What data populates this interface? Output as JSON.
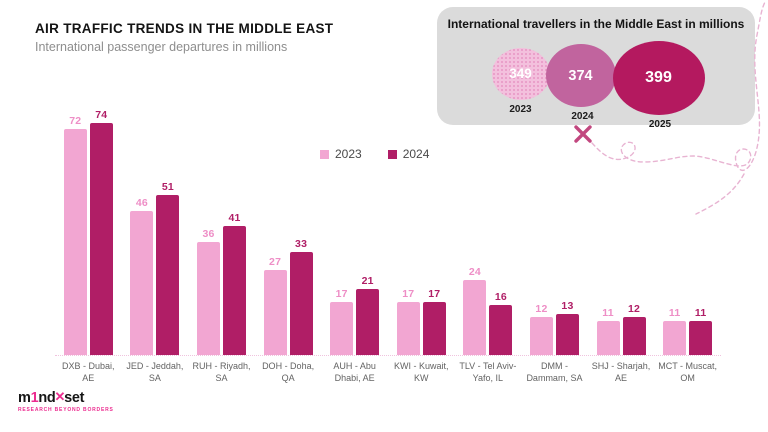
{
  "header": {
    "title": "AIR TRAFFIC TRENDS IN THE MIDDLE EAST",
    "subtitle": "International passenger departures in millions"
  },
  "chart_data": {
    "type": "bar",
    "title": "AIR TRAFFIC TRENDS IN THE MIDDLE EAST",
    "subtitle": "International passenger departures in millions",
    "categories": [
      "DXB - Dubai, AE",
      "JED - Jeddah, SA",
      "RUH - Riyadh, SA",
      "DOH - Doha, QA",
      "AUH - Abu Dhabi, AE",
      "KWI - Kuwait, KW",
      "TLV - Tel Aviv-Yafo, IL",
      "DMM - Dammam, SA",
      "SHJ - Sharjah, AE",
      "MCT - Muscat, OM"
    ],
    "series": [
      {
        "name": "2023",
        "color": "#f2a6d2",
        "label_color": "#ee8ec6",
        "values": [
          72,
          46,
          36,
          27,
          17,
          17,
          24,
          12,
          11,
          11
        ]
      },
      {
        "name": "2024",
        "color": "#b01e66",
        "label_color": "#b01e66",
        "values": [
          74,
          51,
          41,
          33,
          21,
          17,
          16,
          13,
          12,
          11
        ]
      }
    ],
    "ylim": [
      0,
      80
    ],
    "grid": false,
    "legend_position": "top-center",
    "axis_line": "dotted-pink"
  },
  "infocard": {
    "title": "International travellers in the Middle East in millions",
    "background": "#dbdbdb",
    "bubbles": [
      {
        "year": "2023",
        "value": "349",
        "color": "#f3c0dd",
        "pattern": "dotted"
      },
      {
        "year": "2024",
        "value": "374",
        "color": "#c1649e",
        "pattern": "solid"
      },
      {
        "year": "2025",
        "value": "399",
        "color": "#b4195f",
        "pattern": "solid"
      }
    ]
  },
  "logo": {
    "part1": "m",
    "accent_digit": "1",
    "part2": "nd",
    "part3": "set",
    "tagline": "RESEARCH BEYOND BORDERS",
    "accent_color": "#ec2d90"
  },
  "decorations": {
    "flight_path_color": "#e8b4d2",
    "x_marker_color": "#c2477f"
  }
}
